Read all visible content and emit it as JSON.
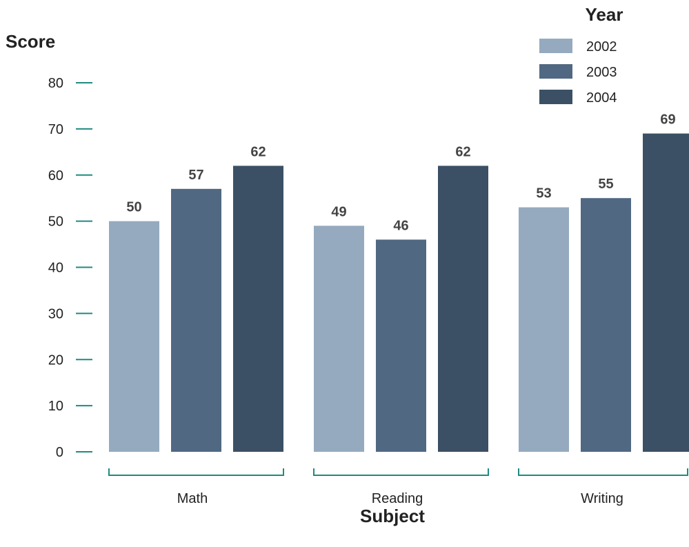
{
  "chart_data": {
    "type": "bar",
    "categories": [
      "Math",
      "Reading",
      "Writing"
    ],
    "series": [
      {
        "name": "2002",
        "values": [
          50,
          49,
          53
        ],
        "color": "#95aabe"
      },
      {
        "name": "2003",
        "values": [
          57,
          46,
          55
        ],
        "color": "#506882"
      },
      {
        "name": "2004",
        "values": [
          62,
          62,
          69
        ],
        "color": "#3b5064"
      }
    ],
    "title": "",
    "xlabel": "Subject",
    "ylabel": "Score",
    "ylim": [
      0,
      80
    ],
    "yticks": [
      0,
      10,
      20,
      30,
      40,
      50,
      60,
      70,
      80
    ],
    "legend_title": "Year",
    "legend_position": "top-right",
    "grid": false,
    "accent_color": "#1f8a80"
  }
}
